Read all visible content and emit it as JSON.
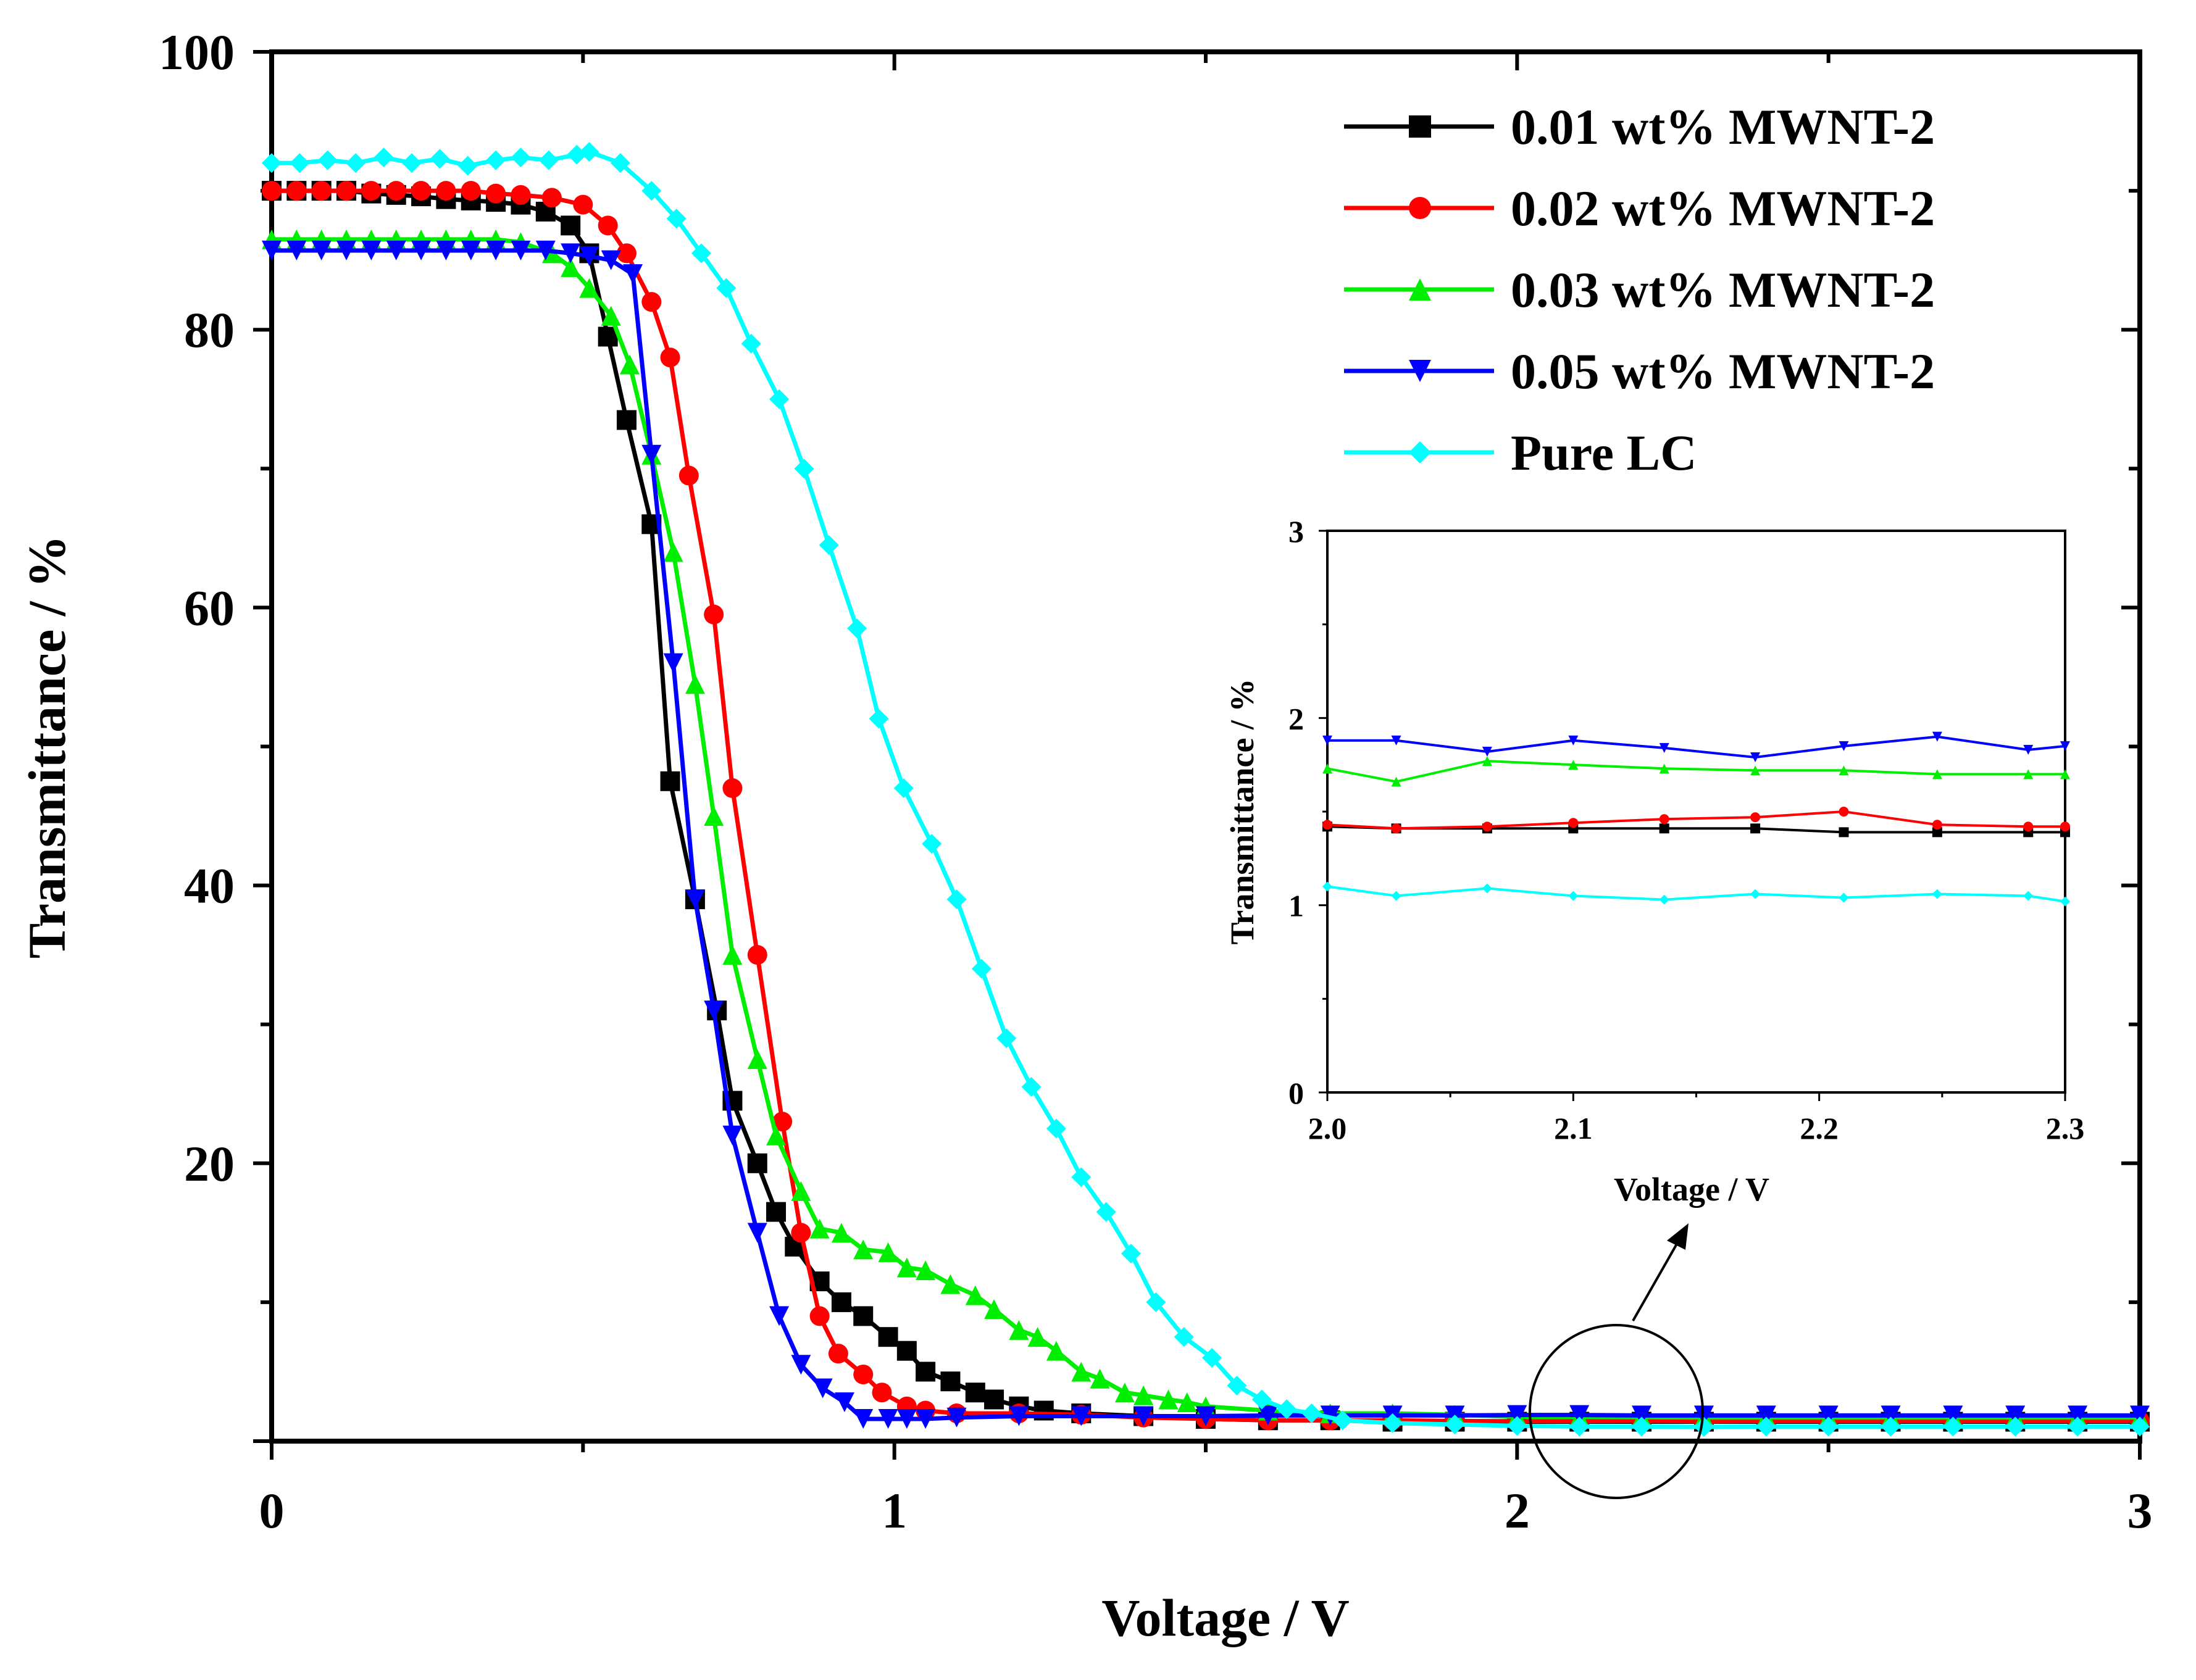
{
  "chart_data": {
    "type": "line",
    "title": "",
    "xlabel": "Voltage / V",
    "ylabel": "Transmittance / %",
    "xlim": [
      0,
      3
    ],
    "ylim": [
      0,
      100
    ],
    "xticks": [
      "0",
      "1",
      "2",
      "3"
    ],
    "yticks": [
      "20",
      "40",
      "60",
      "80",
      "100"
    ],
    "legend_position": "top-right",
    "series": [
      {
        "name": "0.01 wt% MWNT-2",
        "color": "#000000",
        "marker": "square",
        "x": [
          0,
          0.04,
          0.08,
          0.12,
          0.16,
          0.2,
          0.24,
          0.28,
          0.32,
          0.36,
          0.4,
          0.44,
          0.48,
          0.51,
          0.54,
          0.57,
          0.61,
          0.64,
          0.68,
          0.715,
          0.74,
          0.78,
          0.81,
          0.84,
          0.88,
          0.915,
          0.95,
          0.99,
          1.02,
          1.05,
          1.09,
          1.13,
          1.16,
          1.2,
          1.24,
          1.3,
          1.4,
          1.5,
          1.6,
          1.7,
          1.8,
          1.9,
          2.0,
          2.1,
          2.2,
          2.3,
          2.4,
          2.5,
          2.6,
          2.7,
          2.8,
          2.9,
          3.0
        ],
        "y": [
          90,
          90,
          90,
          90,
          89.8,
          89.7,
          89.6,
          89.4,
          89.3,
          89.2,
          89,
          88.5,
          87.5,
          85.5,
          79.5,
          73.5,
          66,
          47.5,
          39,
          31,
          24.5,
          20,
          16.5,
          14,
          11.5,
          10,
          9,
          7.5,
          6.5,
          5,
          4.3,
          3.5,
          3,
          2.5,
          2.2,
          2,
          1.8,
          1.6,
          1.5,
          1.5,
          1.4,
          1.4,
          1.4,
          1.4,
          1.4,
          1.4,
          1.4,
          1.4,
          1.4,
          1.4,
          1.4,
          1.4,
          1.4
        ]
      },
      {
        "name": "0.02 wt% MWNT-2",
        "color": "#ff0000",
        "marker": "circle",
        "x": [
          0,
          0.04,
          0.08,
          0.12,
          0.16,
          0.2,
          0.24,
          0.28,
          0.32,
          0.36,
          0.4,
          0.45,
          0.5,
          0.54,
          0.57,
          0.61,
          0.64,
          0.67,
          0.71,
          0.74,
          0.78,
          0.82,
          0.85,
          0.88,
          0.91,
          0.95,
          0.98,
          1.02,
          1.05,
          1.1,
          1.2,
          1.3,
          1.4,
          1.5,
          1.6,
          1.7,
          1.8,
          1.9,
          2.0,
          2.1,
          2.2,
          2.3,
          2.4,
          2.5,
          2.6,
          2.7,
          2.8,
          2.9,
          3.0
        ],
        "y": [
          90,
          90,
          90,
          90,
          90,
          90,
          90,
          90,
          90,
          89.8,
          89.7,
          89.5,
          89,
          87.5,
          85.5,
          82,
          78,
          69.5,
          59.5,
          47,
          35,
          23,
          15,
          9,
          6.3,
          4.8,
          3.5,
          2.5,
          2.2,
          2,
          2,
          1.9,
          1.7,
          1.6,
          1.5,
          1.5,
          1.5,
          1.45,
          1.43,
          1.44,
          1.47,
          1.42,
          1.45,
          1.45,
          1.45,
          1.45,
          1.45,
          1.45,
          1.45
        ]
      },
      {
        "name": "0.03 wt% MWNT-2",
        "color": "#00ee00",
        "marker": "triangle-up",
        "x": [
          0,
          0.04,
          0.08,
          0.12,
          0.16,
          0.2,
          0.24,
          0.28,
          0.32,
          0.36,
          0.4,
          0.45,
          0.48,
          0.51,
          0.545,
          0.575,
          0.61,
          0.645,
          0.68,
          0.71,
          0.74,
          0.78,
          0.81,
          0.85,
          0.88,
          0.915,
          0.95,
          0.99,
          1.02,
          1.05,
          1.09,
          1.13,
          1.16,
          1.2,
          1.23,
          1.26,
          1.3,
          1.33,
          1.37,
          1.4,
          1.44,
          1.47,
          1.5,
          1.6,
          1.7,
          1.8,
          1.9,
          2.0,
          2.1,
          2.2,
          2.3,
          2.4,
          2.5,
          2.6,
          2.7,
          2.8,
          2.9,
          3.0
        ],
        "y": [
          86.5,
          86.5,
          86.5,
          86.5,
          86.5,
          86.5,
          86.5,
          86.5,
          86.5,
          86.5,
          86.3,
          85.5,
          84.5,
          83,
          81,
          77.5,
          71,
          64,
          54.5,
          45,
          35,
          27.5,
          22,
          18,
          15.3,
          15,
          13.8,
          13.6,
          12.5,
          12.3,
          11.3,
          10.5,
          9.5,
          8,
          7.5,
          6.5,
          5,
          4.5,
          3.5,
          3.3,
          3,
          2.8,
          2.5,
          2.2,
          2,
          2,
          1.9,
          1.75,
          1.74,
          1.72,
          1.7,
          1.7,
          1.7,
          1.7,
          1.7,
          1.7,
          1.7,
          1.7
        ]
      },
      {
        "name": "0.05 wt% MWNT-2",
        "color": "#0000ff",
        "marker": "triangle-down",
        "x": [
          0,
          0.04,
          0.08,
          0.12,
          0.16,
          0.2,
          0.24,
          0.28,
          0.32,
          0.36,
          0.4,
          0.44,
          0.48,
          0.51,
          0.545,
          0.58,
          0.61,
          0.645,
          0.68,
          0.71,
          0.74,
          0.78,
          0.815,
          0.85,
          0.885,
          0.92,
          0.95,
          0.99,
          1.02,
          1.05,
          1.1,
          1.2,
          1.3,
          1.4,
          1.5,
          1.6,
          1.7,
          1.8,
          1.9,
          2.0,
          2.1,
          2.2,
          2.3,
          2.4,
          2.5,
          2.6,
          2.7,
          2.8,
          2.9,
          3.0
        ],
        "y": [
          85.7,
          85.7,
          85.7,
          85.7,
          85.7,
          85.7,
          85.7,
          85.7,
          85.7,
          85.7,
          85.7,
          85.7,
          85.5,
          85.3,
          85,
          84,
          71,
          56,
          39,
          31,
          22,
          15,
          9,
          5.5,
          3.8,
          2.8,
          1.6,
          1.6,
          1.6,
          1.6,
          1.7,
          1.8,
          1.8,
          1.8,
          1.8,
          1.85,
          1.85,
          1.85,
          1.85,
          1.88,
          1.88,
          1.85,
          1.85,
          1.85,
          1.85,
          1.85,
          1.85,
          1.85,
          1.85,
          1.85
        ]
      },
      {
        "name": "Pure LC",
        "color": "#00ffff",
        "marker": "diamond",
        "x": [
          0,
          0.045,
          0.09,
          0.135,
          0.18,
          0.225,
          0.27,
          0.315,
          0.36,
          0.4,
          0.445,
          0.49,
          0.51,
          0.56,
          0.61,
          0.65,
          0.69,
          0.73,
          0.77,
          0.815,
          0.855,
          0.895,
          0.94,
          0.975,
          1.015,
          1.06,
          1.1,
          1.14,
          1.18,
          1.22,
          1.26,
          1.3,
          1.34,
          1.38,
          1.42,
          1.465,
          1.51,
          1.55,
          1.59,
          1.63,
          1.67,
          1.72,
          1.8,
          1.9,
          2.0,
          2.1,
          2.2,
          2.3,
          2.4,
          2.5,
          2.6,
          2.7,
          2.8,
          2.9,
          3.0
        ],
        "y": [
          92,
          92,
          92.2,
          92,
          92.4,
          92,
          92.3,
          91.8,
          92.2,
          92.4,
          92.2,
          92.6,
          92.8,
          92,
          90,
          88,
          85.5,
          83,
          79,
          75,
          70,
          64.5,
          58.5,
          52,
          47,
          43,
          39,
          34,
          29,
          25.5,
          22.5,
          19,
          16.5,
          13.5,
          10,
          7.5,
          6,
          4,
          3,
          2.3,
          2,
          1.5,
          1.3,
          1.2,
          1.1,
          1.05,
          1.05,
          1.03,
          1.05,
          1.05,
          1.05,
          1.05,
          1.05,
          1.05,
          1.05
        ]
      }
    ],
    "inset": {
      "xlabel": "Voltage / V",
      "ylabel": "Transmittance / %",
      "xlim": [
        2.0,
        2.3
      ],
      "ylim": [
        0,
        3
      ],
      "xticks": [
        "2.0",
        "2.1",
        "2.2",
        "2.3"
      ],
      "yticks": [
        "0",
        "1",
        "2",
        "3"
      ],
      "x": [
        2.0,
        2.028,
        2.065,
        2.1,
        2.137,
        2.174,
        2.21,
        2.248,
        2.285,
        2.3
      ],
      "series": [
        {
          "name": "0.01 wt% MWNT-2",
          "color": "#000000",
          "marker": "square",
          "y": [
            1.42,
            1.41,
            1.41,
            1.41,
            1.41,
            1.41,
            1.39,
            1.39,
            1.39,
            1.39
          ]
        },
        {
          "name": "0.02 wt% MWNT-2",
          "color": "#ff0000",
          "marker": "circle",
          "y": [
            1.43,
            1.41,
            1.42,
            1.44,
            1.46,
            1.47,
            1.5,
            1.43,
            1.42,
            1.42
          ]
        },
        {
          "name": "0.03 wt% MWNT-2",
          "color": "#00ee00",
          "marker": "triangle-up",
          "y": [
            1.73,
            1.66,
            1.77,
            1.75,
            1.73,
            1.72,
            1.72,
            1.7,
            1.7,
            1.7
          ]
        },
        {
          "name": "0.05 wt% MWNT-2",
          "color": "#0000ff",
          "marker": "triangle-down",
          "y": [
            1.88,
            1.88,
            1.82,
            1.88,
            1.84,
            1.79,
            1.85,
            1.9,
            1.83,
            1.85
          ]
        },
        {
          "name": "Pure LC",
          "color": "#00ffff",
          "marker": "diamond",
          "y": [
            1.1,
            1.05,
            1.09,
            1.05,
            1.03,
            1.06,
            1.04,
            1.06,
            1.05,
            1.02
          ]
        }
      ]
    }
  }
}
